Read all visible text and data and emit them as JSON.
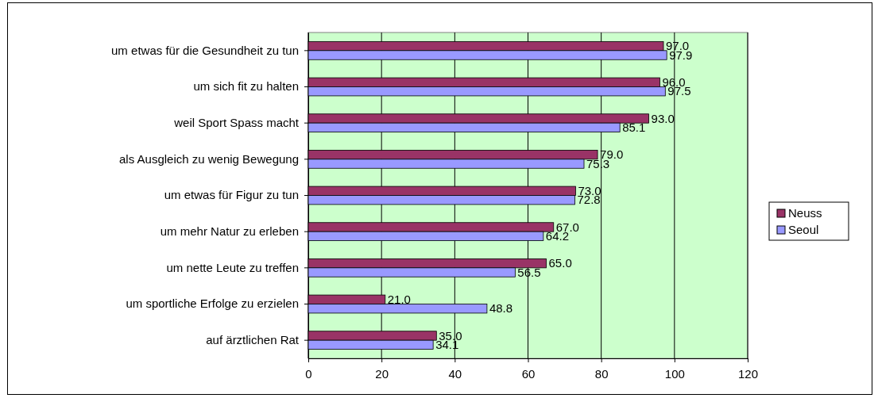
{
  "chart_data": {
    "type": "bar",
    "orientation": "horizontal",
    "categories": [
      "um etwas für die Gesundheit zu tun",
      "um sich fit zu halten ",
      "weil Sport Spass macht",
      "als Ausgleich zu wenig Bewegung",
      "um etwas für Figur zu tun",
      "um mehr Natur zu erleben",
      "um nette Leute zu treffen",
      "um sportliche Erfolge zu erzielen",
      "auf ärztlichen Rat"
    ],
    "series": [
      {
        "name": "Neuss",
        "color": "#993366",
        "values": [
          97.0,
          96.0,
          93.0,
          79.0,
          73.0,
          67.0,
          65.0,
          21.0,
          35.0
        ],
        "value_labels": [
          "97.0",
          "96.0",
          "93.0",
          "79.0",
          "73.0",
          "67.0",
          "65.0",
          "21.0",
          "35.0"
        ]
      },
      {
        "name": "Seoul",
        "color": "#9999ff",
        "values": [
          97.9,
          97.5,
          85.1,
          75.3,
          72.8,
          64.2,
          56.5,
          48.8,
          34.1
        ],
        "value_labels": [
          "97.9",
          "97.5",
          "85.1",
          "75.3",
          "72.8",
          "64.2",
          "56.5",
          "48.8",
          "34.1"
        ]
      }
    ],
    "xlim": [
      0,
      120
    ],
    "xticks": [
      0,
      20,
      40,
      60,
      80,
      100,
      120
    ],
    "grid": "x",
    "legend": "right"
  }
}
